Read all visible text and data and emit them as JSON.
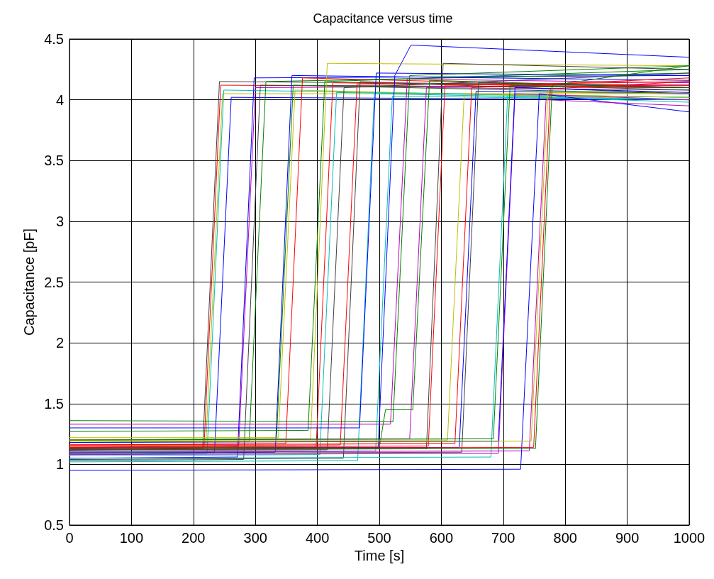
{
  "chart_data": {
    "type": "line",
    "title": "Capacitance versus time",
    "xlabel": "Time [s]",
    "ylabel": "Capacitance [pF]",
    "xlim": [
      0,
      1000
    ],
    "xticks": [
      0,
      100,
      200,
      300,
      400,
      500,
      600,
      700,
      800,
      900,
      1000
    ],
    "ylim": [
      0.5,
      4.5
    ],
    "yticks": [
      0.5,
      1,
      1.5,
      2,
      2.5,
      3,
      3.5,
      4,
      4.5
    ],
    "grid": true,
    "marker": "none",
    "line_style": "solid",
    "series": [
      {
        "color": "#ff0000",
        "x": [
          0,
          217,
          244,
          1000
        ],
        "values": [
          1.12,
          1.13,
          4.12,
          4.1
        ]
      },
      {
        "color": "#404040",
        "x": [
          0,
          215,
          242,
          1000
        ],
        "values": [
          1.13,
          1.14,
          4.15,
          4.12
        ]
      },
      {
        "color": "#bfbf00",
        "x": [
          0,
          220,
          247,
          1000
        ],
        "values": [
          1.15,
          1.16,
          4.05,
          4.05
        ]
      },
      {
        "color": "#00bfbf",
        "x": [
          0,
          222,
          249,
          1000
        ],
        "values": [
          1.08,
          1.09,
          4.08,
          4.02
        ]
      },
      {
        "color": "#0000ff",
        "x": [
          0,
          234,
          261,
          1000
        ],
        "values": [
          1.1,
          1.1,
          4.02,
          4.0
        ]
      },
      {
        "color": "#0000ff",
        "x": [
          0,
          271,
          298,
          1000
        ],
        "values": [
          1.05,
          1.06,
          4.18,
          4.2
        ]
      },
      {
        "color": "#bf00bf",
        "x": [
          0,
          273,
          300,
          1000
        ],
        "values": [
          1.14,
          1.15,
          4.1,
          4.12
        ]
      },
      {
        "color": "#404040",
        "x": [
          0,
          281,
          308,
          1000
        ],
        "values": [
          1.03,
          1.04,
          4.12,
          4.1
        ]
      },
      {
        "color": "#008000",
        "x": [
          0,
          290,
          317,
          1000
        ],
        "values": [
          1.18,
          1.19,
          4.15,
          4.22
        ]
      },
      {
        "color": "#0000ff",
        "x": [
          0,
          332,
          359,
          1000
        ],
        "values": [
          1.09,
          1.1,
          4.2,
          4.16
        ]
      },
      {
        "color": "#008000",
        "x": [
          0,
          334,
          361,
          1000
        ],
        "values": [
          1.2,
          1.21,
          4.12,
          4.05
        ]
      },
      {
        "color": "#bfbf00",
        "x": [
          0,
          337,
          364,
          1000
        ],
        "values": [
          1.22,
          1.22,
          4.08,
          4.0
        ]
      },
      {
        "color": "#ff0000",
        "x": [
          0,
          349,
          376,
          1000
        ],
        "values": [
          1.16,
          1.17,
          4.18,
          4.1
        ]
      },
      {
        "color": "#008000",
        "x": [
          0,
          385,
          412,
          1000
        ],
        "values": [
          1.27,
          1.28,
          4.15,
          4.25
        ]
      },
      {
        "color": "#bfbf00",
        "x": [
          0,
          389,
          416,
          1000
        ],
        "values": [
          1.2,
          1.21,
          4.3,
          4.28
        ]
      },
      {
        "color": "#ff0000",
        "x": [
          0,
          398,
          425,
          1000
        ],
        "values": [
          1.13,
          1.14,
          4.14,
          4.1
        ]
      },
      {
        "color": "#00bfbf",
        "x": [
          0,
          404,
          431,
          1000
        ],
        "values": [
          1.07,
          1.08,
          4.06,
          4.02
        ]
      },
      {
        "color": "#404040",
        "x": [
          0,
          416,
          443,
          1000
        ],
        "values": [
          1.11,
          1.12,
          4.1,
          4.22
        ]
      },
      {
        "color": "#ff0000",
        "x": [
          0,
          437,
          464,
          1000
        ],
        "values": [
          1.15,
          1.16,
          4.13,
          4.12
        ]
      },
      {
        "color": "#404040",
        "x": [
          0,
          442,
          469,
          1000
        ],
        "values": [
          1.04,
          1.05,
          4.15,
          4.05
        ]
      },
      {
        "color": "#00bfbf",
        "x": [
          0,
          465,
          492,
          1000
        ],
        "values": [
          1.02,
          1.03,
          4.05,
          4.0
        ]
      },
      {
        "color": "#0000ff",
        "x": [
          0,
          468,
          495,
          1000
        ],
        "values": [
          1.3,
          1.3,
          4.22,
          4.2
        ]
      },
      {
        "color": "#00bfbf",
        "x": [
          0,
          494,
          521,
          1000
        ],
        "values": [
          1.1,
          1.11,
          4.03,
          4.0
        ]
      },
      {
        "color": "#0000ff",
        "x": [
          0,
          498,
          525,
          551,
          1000
        ],
        "values": [
          1.12,
          1.13,
          4.2,
          4.45,
          4.35
        ]
      },
      {
        "color": "#bf00bf",
        "x": [
          0,
          518,
          545,
          1000
        ],
        "values": [
          1.33,
          1.33,
          4.17,
          4.14
        ]
      },
      {
        "color": "#008000",
        "x": [
          0,
          522,
          549,
          1000
        ],
        "values": [
          1.36,
          1.35,
          4.2,
          4.28
        ]
      },
      {
        "color": "#bf00bf",
        "x": [
          0,
          549,
          576,
          1000
        ],
        "values": [
          1.2,
          1.21,
          4.1,
          4.08
        ]
      },
      {
        "color": "#008000",
        "x": [
          0,
          500,
          510,
          554,
          581,
          1000
        ],
        "values": [
          1.14,
          1.14,
          1.45,
          1.45,
          4.16,
          4.1
        ]
      },
      {
        "color": "#404040",
        "x": [
          0,
          576,
          603,
          1000
        ],
        "values": [
          1.12,
          1.13,
          4.3,
          4.25
        ]
      },
      {
        "color": "#ff0000",
        "x": [
          0,
          579,
          606,
          1000
        ],
        "values": [
          1.14,
          1.15,
          4.12,
          4.15
        ]
      },
      {
        "color": "#bfbf00",
        "x": [
          0,
          610,
          637,
          1000
        ],
        "values": [
          1.2,
          1.2,
          4.05,
          4.02
        ]
      },
      {
        "color": "#ff0000",
        "x": [
          0,
          622,
          649,
          1000
        ],
        "values": [
          1.16,
          1.17,
          4.1,
          4.18
        ]
      },
      {
        "color": "#0000ff",
        "x": [
          0,
          629,
          656,
          1000
        ],
        "values": [
          1.13,
          1.14,
          4.07,
          4.05
        ]
      },
      {
        "color": "#404040",
        "x": [
          0,
          633,
          660,
          1000
        ],
        "values": [
          1.09,
          1.1,
          4.14,
          4.1
        ]
      },
      {
        "color": "#00bfbf",
        "x": [
          0,
          680,
          707,
          1000
        ],
        "values": [
          1.05,
          1.06,
          4.03,
          3.98
        ]
      },
      {
        "color": "#008000",
        "x": [
          0,
          684,
          711,
          1000
        ],
        "values": [
          1.2,
          1.21,
          4.12,
          4.08
        ]
      },
      {
        "color": "#bf00bf",
        "x": [
          0,
          692,
          719,
          1000
        ],
        "values": [
          1.08,
          1.09,
          4.05,
          4.0
        ]
      },
      {
        "color": "#0000ff",
        "x": [
          0,
          692,
          719,
          1000
        ],
        "values": [
          1.18,
          1.19,
          4.1,
          4.06
        ]
      },
      {
        "color": "#0000ff",
        "x": [
          0,
          728,
          758,
          1000
        ],
        "values": [
          0.95,
          0.96,
          4.05,
          3.9
        ]
      },
      {
        "color": "#bf00bf",
        "x": [
          0,
          742,
          769,
          1000
        ],
        "values": [
          1.1,
          1.11,
          4.0,
          3.95
        ]
      },
      {
        "color": "#bfbf00",
        "x": [
          0,
          745,
          772,
          1000
        ],
        "values": [
          1.19,
          1.19,
          4.06,
          4.05
        ]
      },
      {
        "color": "#ff0000",
        "x": [
          0,
          749,
          776,
          1000
        ],
        "values": [
          1.13,
          1.14,
          4.09,
          4.15
        ]
      },
      {
        "color": "#008000",
        "x": [
          0,
          752,
          779,
          1000
        ],
        "values": [
          1.12,
          1.13,
          4.12,
          4.28
        ]
      }
    ]
  }
}
